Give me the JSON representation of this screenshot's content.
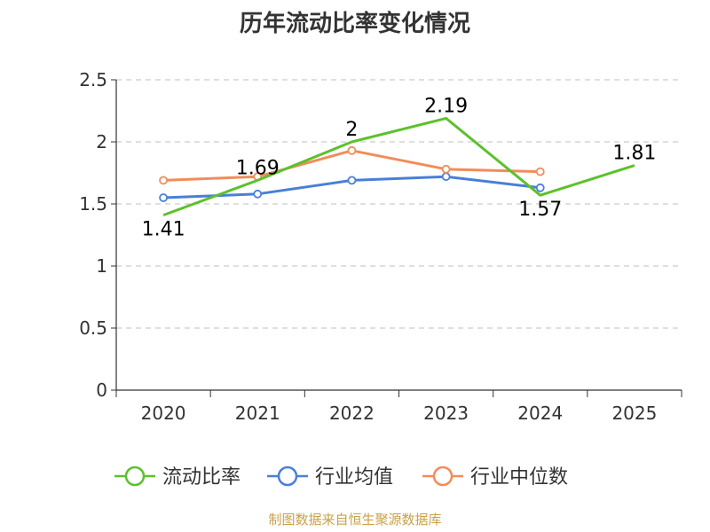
{
  "chart_data": {
    "type": "line",
    "title": "历年流动比率变化情况",
    "categories": [
      "2020",
      "2021",
      "2022",
      "2023",
      "2024",
      "2025"
    ],
    "series": [
      {
        "name": "流动比率",
        "color": "#5cc12c",
        "values": [
          1.41,
          1.69,
          2,
          2.19,
          1.57,
          1.81
        ],
        "labels": [
          "1.41",
          "1.69",
          "2",
          "2.19",
          "1.57",
          "1.81"
        ],
        "show_points": false
      },
      {
        "name": "行业均值",
        "color": "#4a7fd8",
        "values": [
          1.55,
          1.58,
          1.69,
          1.72,
          1.63,
          null
        ],
        "show_points": true
      },
      {
        "name": "行业中位数",
        "color": "#f28c5a",
        "values": [
          1.69,
          1.72,
          1.93,
          1.78,
          1.76,
          null
        ],
        "show_points": true
      }
    ],
    "yticks": [
      "0",
      "0.5",
      "1",
      "1.5",
      "2",
      "2.5"
    ],
    "ylim": [
      0,
      2.5
    ],
    "grid": true,
    "legend_position": "bottom"
  },
  "source_text": "制图数据来自恒生聚源数据库"
}
